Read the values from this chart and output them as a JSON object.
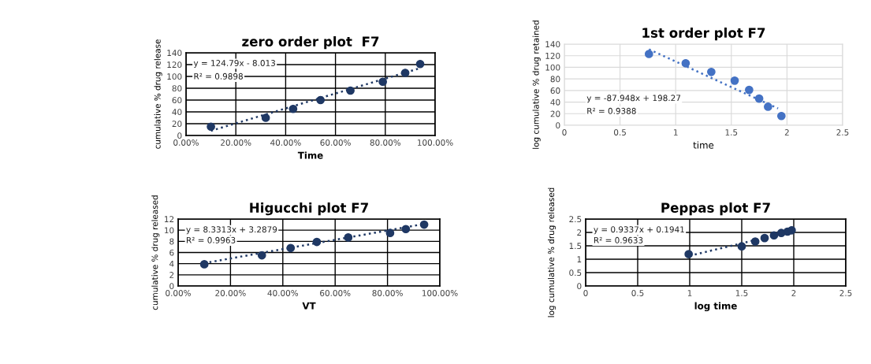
{
  "chart_data": [
    {
      "type": "scatter",
      "title": "zero order plot  F7",
      "xlabel": "Time",
      "ylabel": "cumulative % drug release",
      "grid": true,
      "annotations": [
        "y = 124.79x - 8.013",
        "R² = 0.9898"
      ],
      "xlim": [
        0,
        1
      ],
      "xticks": [
        {
          "value": 0,
          "label": "0.00%"
        },
        {
          "value": 0.2,
          "label": "20.00%"
        },
        {
          "value": 0.4,
          "label": "40.00%"
        },
        {
          "value": 0.6,
          "label": "60.00%"
        },
        {
          "value": 0.8,
          "label": "80.00%"
        },
        {
          "value": 1,
          "label": "100.00%"
        }
      ],
      "ylim": [
        0,
        140
      ],
      "yticks": [
        0,
        20,
        40,
        60,
        80,
        100,
        120,
        140
      ],
      "series": [
        {
          "color": "#1f3864",
          "marker": "circle",
          "x": [
            0.1,
            0.32,
            0.43,
            0.54,
            0.66,
            0.79,
            0.88,
            0.94
          ],
          "values": [
            15,
            30,
            45,
            60,
            76,
            91,
            106,
            121
          ]
        },
        {
          "type": "line",
          "line_style": "dotted",
          "color": "#1f3864",
          "x": [
            0.1,
            0.94
          ],
          "values": [
            8,
            114
          ]
        }
      ]
    },
    {
      "type": "scatter",
      "title": "1st order plot F7",
      "xlabel": "time",
      "ylabel": "log cumulative % drug retained",
      "grid": true,
      "annotations": [
        "y = -87.948x + 198.27",
        "R² = 0.9388"
      ],
      "xlim": [
        0,
        2.5
      ],
      "xticks": [
        0,
        0.5,
        1,
        1.5,
        2,
        2.5
      ],
      "ylim": [
        0,
        140
      ],
      "yticks": [
        0,
        20,
        40,
        60,
        80,
        100,
        120,
        140
      ],
      "series": [
        {
          "color": "#4472c4",
          "marker": "circle",
          "x": [
            0.76,
            1.09,
            1.32,
            1.53,
            1.66,
            1.75,
            1.83,
            1.95
          ],
          "values": [
            123,
            107,
            92,
            77,
            61,
            46,
            32,
            16
          ]
        },
        {
          "type": "line",
          "line_style": "dotted",
          "color": "#4472c4",
          "x": [
            0.76,
            1.92
          ],
          "values": [
            131,
            29
          ]
        }
      ]
    },
    {
      "type": "scatter",
      "title": "Higucchi plot F7",
      "xlabel": "VT",
      "ylabel": "cumulative % drug released",
      "grid": true,
      "annotations": [
        "y = 8.3313x + 3.2879",
        "R² = 0.9963"
      ],
      "xlim": [
        0,
        1
      ],
      "xticks": [
        {
          "value": 0,
          "label": "0.00%"
        },
        {
          "value": 0.2,
          "label": "20.00%"
        },
        {
          "value": 0.4,
          "label": "40.00%"
        },
        {
          "value": 0.6,
          "label": "60.00%"
        },
        {
          "value": 0.8,
          "label": "80.00%"
        },
        {
          "value": 1,
          "label": "100.00%"
        }
      ],
      "ylim": [
        0,
        12
      ],
      "yticks": [
        0,
        2,
        4,
        6,
        8,
        10,
        12
      ],
      "series": [
        {
          "color": "#1f3864",
          "marker": "circle",
          "x": [
            0.1,
            0.32,
            0.43,
            0.53,
            0.65,
            0.81,
            0.87,
            0.94
          ],
          "values": [
            3.9,
            5.5,
            6.8,
            7.9,
            8.7,
            9.5,
            10.2,
            11.0
          ]
        },
        {
          "type": "line",
          "line_style": "dotted",
          "color": "#1f3864",
          "x": [
            0.1,
            0.95
          ],
          "values": [
            4.1,
            11.2
          ]
        }
      ]
    },
    {
      "type": "scatter",
      "title": "Peppas plot F7",
      "xlabel": "log time",
      "ylabel": "log cumulative % drug released",
      "grid": true,
      "annotations": [
        "y = 0.9337x + 0.1941",
        "R² = 0.9633"
      ],
      "xlim": [
        0,
        2.5
      ],
      "xticks": [
        0,
        0.5,
        1,
        1.5,
        2,
        2.5
      ],
      "ylim": [
        0,
        2.5
      ],
      "yticks": [
        0,
        0.5,
        1,
        1.5,
        2,
        2.5
      ],
      "series": [
        {
          "color": "#1f3864",
          "marker": "circle",
          "x": [
            0.99,
            1.5,
            1.63,
            1.72,
            1.81,
            1.88,
            1.94,
            1.98
          ],
          "values": [
            1.19,
            1.48,
            1.66,
            1.79,
            1.89,
            1.98,
            2.03,
            2.08
          ]
        },
        {
          "type": "line",
          "line_style": "dotted",
          "color": "#1f3864",
          "x": [
            1.0,
            1.98
          ],
          "values": [
            1.13,
            2.04
          ]
        }
      ]
    }
  ]
}
